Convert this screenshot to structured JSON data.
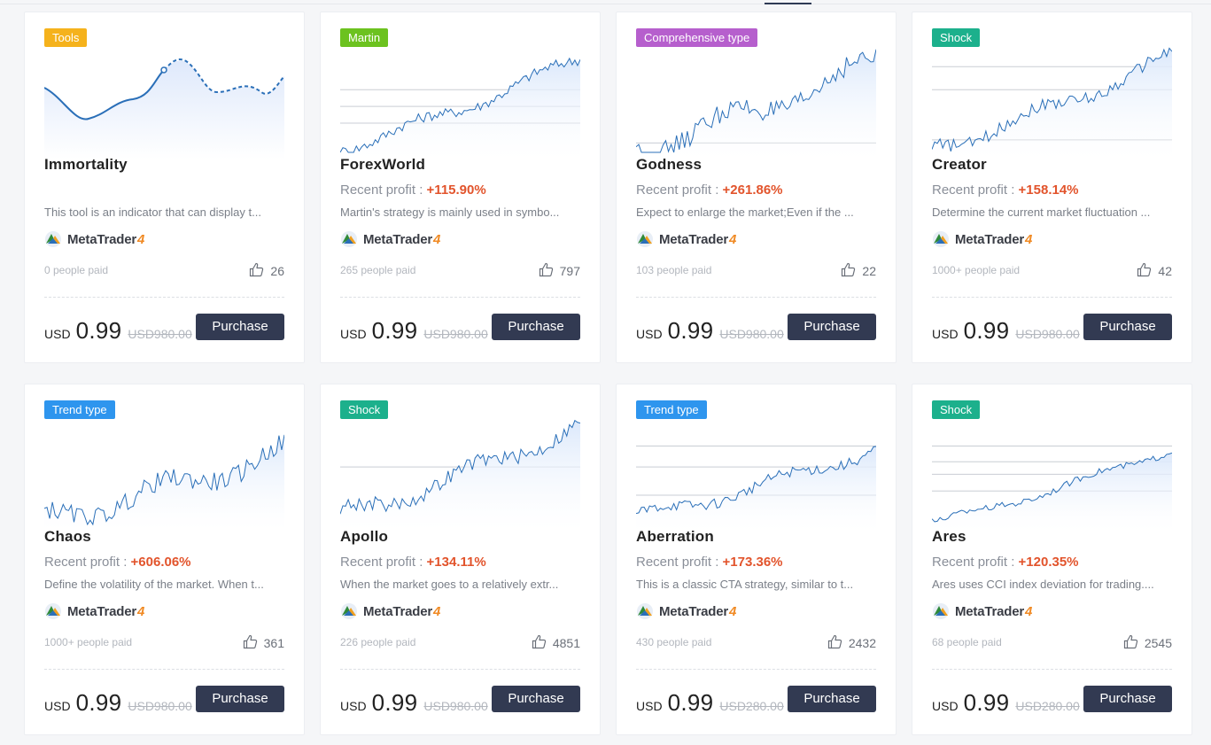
{
  "colors": {
    "tag_tools": "#f5b21c",
    "tag_martin": "#6cc21f",
    "tag_comprehensive": "#b65fcd",
    "tag_shock": "#1cb08c",
    "tag_trend": "#2e95ee",
    "profit": "#e2542c",
    "button": "#323a52",
    "line": "#2a6fb8",
    "area": "#dbe8fb"
  },
  "platform": {
    "name": "MetaTrader",
    "version": "4",
    "icon": "metatrader-logo-icon"
  },
  "like_icon": "thumbs-up-icon",
  "profit_label": "Recent profit : ",
  "currency": "USD",
  "buy_label": "Purchase",
  "products": [
    {
      "tag": "Tools",
      "tag_color": "#f5b21c",
      "name": "Immortality",
      "profit": "",
      "description": "This tool is an indicator that can display t...",
      "paid": "0 people paid",
      "likes": "26",
      "price": "0.99",
      "original_price": "USD980.00"
    },
    {
      "tag": "Martin",
      "tag_color": "#6cc21f",
      "name": "ForexWorld",
      "profit": "+115.90%",
      "description": "Martin's strategy is mainly used in symbo...",
      "paid": "265 people paid",
      "likes": "797",
      "price": "0.99",
      "original_price": "USD980.00"
    },
    {
      "tag": "Comprehensive type",
      "tag_color": "#b65fcd",
      "name": "Godness",
      "profit": "+261.86%",
      "description": "Expect to enlarge the market;Even if the ...",
      "paid": "103 people paid",
      "likes": "22",
      "price": "0.99",
      "original_price": "USD980.00"
    },
    {
      "tag": "Shock",
      "tag_color": "#1cb08c",
      "name": "Creator",
      "profit": "+158.14%",
      "description": "Determine the current market fluctuation ...",
      "paid": "1000+ people paid",
      "likes": "42",
      "price": "0.99",
      "original_price": "USD980.00"
    },
    {
      "tag": "Trend type",
      "tag_color": "#2e95ee",
      "name": "Chaos",
      "profit": "+606.06%",
      "description": "Define the volatility of the market. When t...",
      "paid": "1000+ people paid",
      "likes": "361",
      "price": "0.99",
      "original_price": "USD980.00"
    },
    {
      "tag": "Shock",
      "tag_color": "#1cb08c",
      "name": "Apollo",
      "profit": "+134.11%",
      "description": "When the market goes to a relatively extr...",
      "paid": "226 people paid",
      "likes": "4851",
      "price": "0.99",
      "original_price": "USD980.00"
    },
    {
      "tag": "Trend type",
      "tag_color": "#2e95ee",
      "name": "Aberration",
      "profit": "+173.36%",
      "description": "This is a classic CTA strategy, similar to t...",
      "paid": "430 people paid",
      "likes": "2432",
      "price": "0.99",
      "original_price": "USD280.00"
    },
    {
      "tag": "Shock",
      "tag_color": "#1cb08c",
      "name": "Ares",
      "profit": "+120.35%",
      "description": "Ares uses CCI index deviation for trading....",
      "paid": "68 people paid",
      "likes": "2545",
      "price": "0.99",
      "original_price": "USD280.00"
    }
  ]
}
